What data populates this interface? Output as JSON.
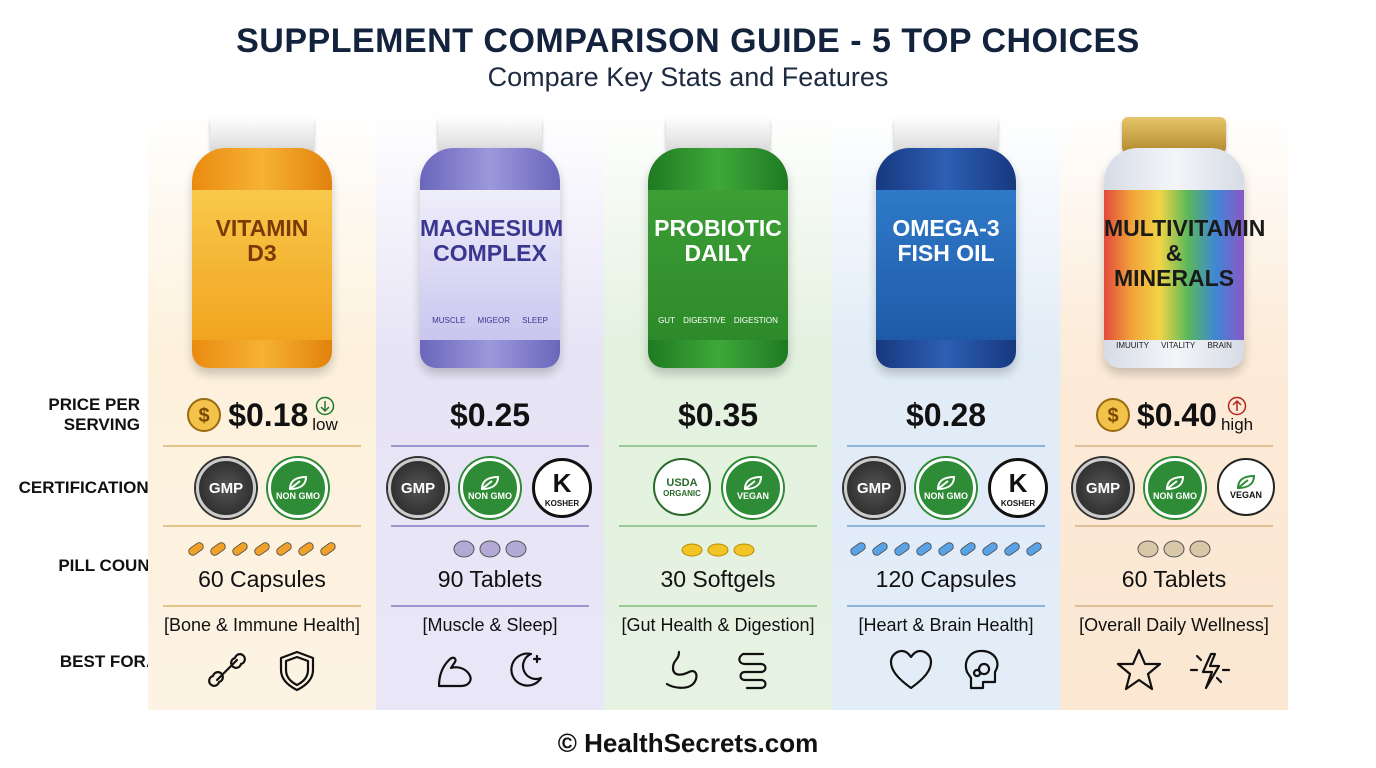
{
  "header": {
    "title": "SUPPLEMENT COMPARISON GUIDE - 5 TOP CHOICES",
    "subtitle": "Compare Key Stats and Features"
  },
  "row_labels": {
    "price": "PRICE PER SERVING",
    "certifications": "CERTIFICATIONS",
    "pill_count": "PILL COUNT",
    "best_for": "BEST FOR..."
  },
  "products": [
    {
      "name_lines": [
        "VITAMIN",
        "D3"
      ],
      "bottle_icons": [],
      "price": "$0.18",
      "price_note": "low",
      "certifications": [
        {
          "lines": [
            "GMP"
          ]
        },
        {
          "lines": [
            "NON GMO"
          ]
        }
      ],
      "pill_count": "60 Capsules",
      "best_for": "[Bone & Immune Health]"
    },
    {
      "name_lines": [
        "MAGNESIUM",
        "COMPLEX"
      ],
      "bottle_icons": [
        "MUSCLE",
        "MIGEOR",
        "SLEEP"
      ],
      "price": "$0.25",
      "certifications": [
        {
          "lines": [
            "GMP"
          ]
        },
        {
          "lines": [
            "NON GMO"
          ]
        },
        {
          "lines": [
            "K",
            "KOSHER"
          ]
        }
      ],
      "pill_count": "90 Tablets",
      "best_for": "[Muscle & Sleep]"
    },
    {
      "name_lines": [
        "PROBIOTIC",
        "DAILY"
      ],
      "bottle_icons": [
        "GUT",
        "DIGESTIVE",
        "DIGESTION"
      ],
      "price": "$0.35",
      "certifications": [
        {
          "lines": [
            "USDA",
            "ORGANIC"
          ]
        },
        {
          "lines": [
            "VEGAN"
          ]
        }
      ],
      "pill_count": "30 Softgels",
      "best_for": "[Gut Health & Digestion]"
    },
    {
      "name_lines": [
        "OMEGA-3",
        "FISH OIL"
      ],
      "bottle_icons": [],
      "price": "$0.28",
      "certifications": [
        {
          "lines": [
            "GMP"
          ]
        },
        {
          "lines": [
            "NON GMO"
          ]
        },
        {
          "lines": [
            "K",
            "KOSHER"
          ]
        }
      ],
      "pill_count": "120 Capsules",
      "best_for": "[Heart & Brain Health]"
    },
    {
      "name_lines": [
        "MULTIVITAMIN",
        "& MINERALS"
      ],
      "bottle_icons": [
        "IMUUITY",
        "VITALITY",
        "BRAIN"
      ],
      "price": "$0.40",
      "price_note": "high",
      "certifications": [
        {
          "lines": [
            "GMP"
          ]
        },
        {
          "lines": [
            "NON GMO"
          ]
        },
        {
          "lines": [
            "VEGAN"
          ]
        }
      ],
      "pill_count": "60 Tablets",
      "best_for": "[Overall Daily Wellness]"
    }
  ],
  "footer": "© HealthSecrets.com"
}
